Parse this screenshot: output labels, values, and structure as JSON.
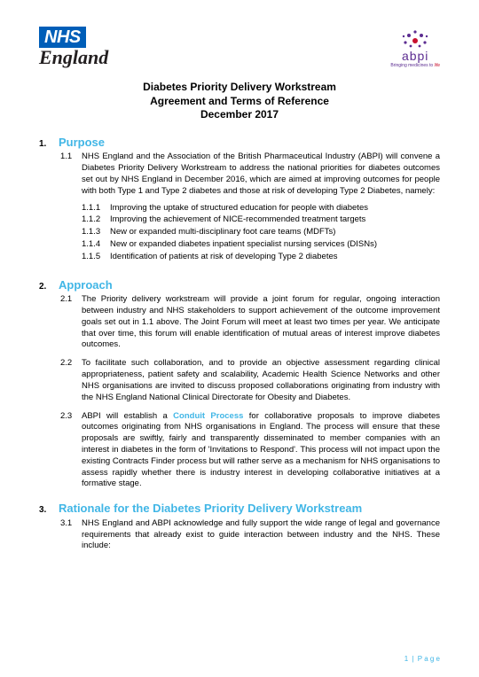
{
  "logos": {
    "nhs_box": "NHS",
    "nhs_england": "England",
    "abpi_text": "abpi",
    "abpi_tag_a": "Bringing medicines to ",
    "abpi_tag_b": "life"
  },
  "title": {
    "line1": "Diabetes Priority Delivery Workstream",
    "line2": "Agreement and Terms of Reference",
    "line3": "December 2017"
  },
  "sections": {
    "s1": {
      "num": "1.",
      "title": "Purpose",
      "p1_num": "1.1",
      "p1_body": "NHS England and the Association of the British Pharmaceutical Industry (ABPI) will convene a Diabetes Priority Delivery Workstream to address the national priorities for diabetes outcomes set out by NHS England in December 2016, which are aimed at improving outcomes for people with both Type 1 and Type 2 diabetes and those at risk of developing Type 2 Diabetes, namely:",
      "subs": [
        {
          "n": "1.1.1",
          "t": "Improving the uptake of structured education for people with diabetes"
        },
        {
          "n": "1.1.2",
          "t": "Improving the achievement of NICE-recommended treatment targets"
        },
        {
          "n": "1.1.3",
          "t": "New or expanded multi-disciplinary foot care teams (MDFTs)"
        },
        {
          "n": "1.1.4",
          "t": "New or expanded diabetes inpatient specialist nursing services (DISNs)"
        },
        {
          "n": "1.1.5",
          "t": "Identification of patients at risk of developing Type 2 diabetes"
        }
      ]
    },
    "s2": {
      "num": "2.",
      "title": "Approach",
      "p1_num": "2.1",
      "p1_body": "The Priority delivery workstream will provide a joint forum for regular, ongoing interaction between industry and NHS stakeholders to support achievement of the outcome improvement goals set out in 1.1 above. The Joint Forum will meet at least two times per year. We anticipate that over time, this forum will enable identification of mutual areas of interest improve diabetes outcomes.",
      "p2_num": "2.2",
      "p2_body": "To facilitate such collaboration, and to provide an objective assessment regarding clinical appropriateness, patient safety and scalability, Academic Health Science Networks and other NHS organisations are invited to discuss proposed collaborations originating from industry with the NHS England National Clinical Directorate for Obesity and Diabetes.",
      "p3_num": "2.3",
      "p3_a": "ABPI will establish a ",
      "p3_emph": "Conduit Process",
      "p3_b": " for collaborative proposals to improve diabetes outcomes originating from NHS organisations in England. The process will ensure that these proposals are swiftly, fairly and transparently disseminated to member companies with an interest in diabetes in the form of 'Invitations to Respond'. This process will not impact upon the existing Contracts Finder process but will rather serve as a mechanism for NHS organisations to assess rapidly whether there is industry interest in developing collaborative initiatives at a formative stage."
    },
    "s3": {
      "num": "3.",
      "title": "Rationale for the Diabetes Priority Delivery Workstream",
      "p1_num": "3.1",
      "p1_body": "NHS England and ABPI acknowledge and fully support the wide range of legal and governance requirements that already exist to guide interaction between industry and the NHS. These include:"
    }
  },
  "footer": {
    "page_num": "1",
    "sep": "|",
    "page_word": "P a g e"
  },
  "colors": {
    "nhs_blue": "#005eb8",
    "accent": "#41b6e6",
    "abpi_purple": "#5c2d91",
    "abpi_red": "#c8102e",
    "text": "#000000",
    "bg": "#ffffff"
  }
}
